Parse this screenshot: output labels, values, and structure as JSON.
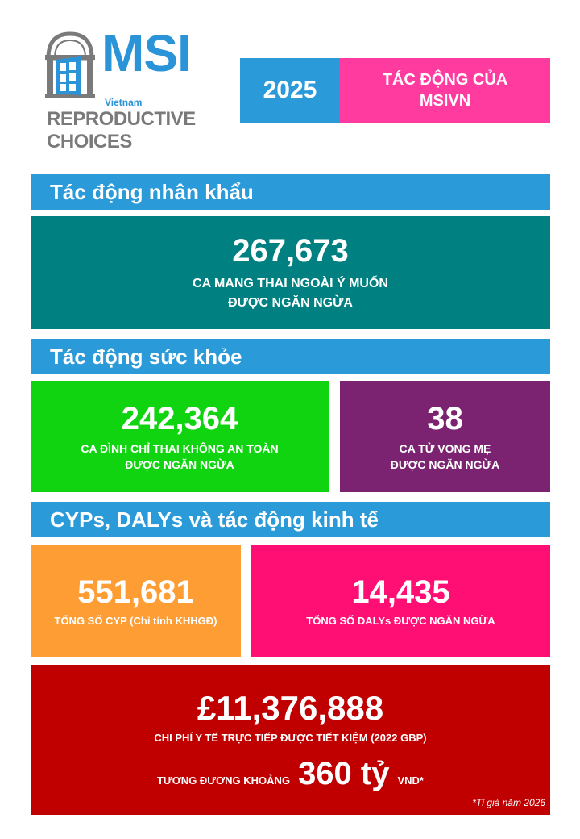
{
  "logo": {
    "brand": "MSI",
    "country": "Vietnam",
    "tagline_line1": "REPRODUCTIVE",
    "tagline_line2": "CHOICES"
  },
  "header": {
    "year": "2025",
    "impact_title_line1": "TÁC ĐỘNG CỦA",
    "impact_title_line2": "MSIVN"
  },
  "sections": {
    "demographic": {
      "title": "Tác động nhân khẩu",
      "value": "267,673",
      "caption_line1": "CA MANG THAI NGOÀI Ý MUỐN",
      "caption_line2": "ĐƯỢC NGĂN NGỪA"
    },
    "health": {
      "title": "Tác động sức khỏe",
      "abortion_value": "242,364",
      "abortion_caption_line1": "CA ĐÌNH CHỈ THAI KHÔNG AN TOÀN",
      "abortion_caption_line2": "ĐƯỢC NGĂN NGỪA",
      "maternal_value": "38",
      "maternal_caption_line1": "CA TỬ VONG MẸ",
      "maternal_caption_line2": "ĐƯỢC NGĂN NGỪA"
    },
    "economic": {
      "title": "CYPs, DALYs và tác động kinh tế",
      "cyp_value": "551,681",
      "cyp_caption": "TỔNG SỐ CYP (Chỉ tính KHHGĐ)",
      "daly_value": "14,435",
      "daly_caption": "TỔNG SỐ DALYs ĐƯỢC NGĂN NGỪA",
      "savings_value": "£11,376,888",
      "savings_caption": "CHI PHÍ Y TẾ TRỰC TIẾP ĐƯỢC TIẾT KIỆM (2022 GBP)",
      "equiv_prefix": "TƯƠNG ĐƯƠNG KHOẢNG",
      "equiv_value": "360 tỷ",
      "equiv_suffix": "VND*",
      "footnote": "*Tỉ giá năm 2026"
    }
  },
  "colors": {
    "blue": "#2b9ad9",
    "pink": "#ff3ba0",
    "teal": "#008080",
    "green": "#11d410",
    "purple": "#7b2370",
    "orange": "#ff9d35",
    "magenta": "#ff0f73",
    "red": "#c00000"
  }
}
